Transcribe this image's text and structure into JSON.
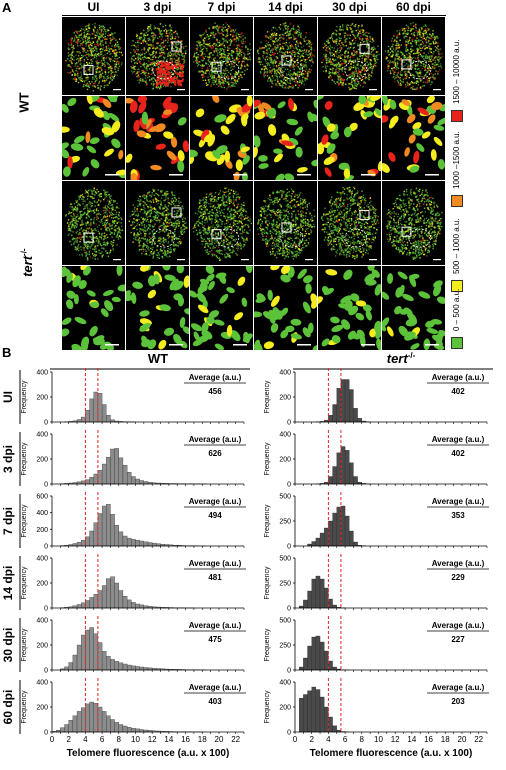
{
  "panel_a_letter": "A",
  "panel_b_letter": "B",
  "columns": [
    "UI",
    "3 dpi",
    "7 dpi",
    "14 dpi",
    "30 dpi",
    "60 dpi"
  ],
  "rows": [
    "WT",
    "tert"
  ],
  "row_b_superscript": "-/-",
  "legend": [
    {
      "label": "1500 – 10000 a.u.",
      "color": "#e8231c"
    },
    {
      "label": "1000 –1500 a.u.",
      "color": "#f08a21"
    },
    {
      "label": "500 – 1000 a.u.",
      "color": "#f4ec1e"
    },
    {
      "label": "0 – 500 a.u.",
      "color": "#5cc23a"
    }
  ],
  "chart_data": {
    "type": "bar",
    "groups": [
      {
        "name": "WT",
        "superscript": "",
        "bar_color": "#8c8c8c"
      },
      {
        "name": "tert",
        "superscript": "-/-",
        "bar_color": "#4a4a4a"
      }
    ],
    "xlabel": "Telomere fluorescence (a.u. x 100)",
    "ylabel": "Frequency",
    "x_ticks": [
      0,
      2,
      4,
      6,
      8,
      10,
      12,
      14,
      16,
      18,
      20,
      22
    ],
    "xlim": [
      0,
      23
    ],
    "reference_lines": [
      4,
      5.5
    ],
    "average_label": "Average (a.u.)",
    "panels": [
      {
        "row": "UI",
        "group": "WT",
        "average": "456",
        "ylim": [
          0,
          400
        ],
        "yticks": [
          0,
          200,
          400
        ],
        "values": [
          0,
          0,
          0,
          2,
          5,
          10,
          20,
          40,
          95,
          185,
          240,
          230,
          140,
          55,
          18,
          8,
          5,
          3,
          2,
          1,
          0,
          0,
          0,
          0,
          0,
          0,
          0,
          0,
          0,
          0,
          0,
          0,
          0,
          0,
          0,
          0,
          0,
          0,
          0,
          0,
          0,
          0,
          0,
          0,
          0,
          0
        ]
      },
      {
        "row": "UI",
        "group": "tert",
        "average": "402",
        "ylim": [
          0,
          400
        ],
        "yticks": [
          0,
          200,
          400
        ],
        "values": [
          0,
          0,
          0,
          0,
          0,
          2,
          5,
          15,
          55,
          140,
          270,
          340,
          340,
          260,
          110,
          30,
          8,
          2,
          0,
          0,
          0,
          0,
          0,
          0,
          0,
          0,
          0,
          0,
          0,
          0,
          0,
          0,
          0,
          0,
          0,
          0,
          0,
          0,
          0,
          0,
          0,
          0,
          0,
          0,
          0,
          0
        ]
      },
      {
        "row": "3 dpi",
        "group": "WT",
        "average": "626",
        "ylim": [
          0,
          400
        ],
        "yticks": [
          0,
          200,
          400
        ],
        "values": [
          0,
          0,
          3,
          5,
          8,
          12,
          18,
          25,
          35,
          55,
          80,
          110,
          160,
          215,
          280,
          285,
          210,
          150,
          95,
          60,
          40,
          28,
          20,
          14,
          10,
          8,
          6,
          5,
          4,
          4,
          3,
          3,
          2,
          2,
          1,
          1,
          1,
          0,
          0,
          0,
          0,
          0,
          0,
          0,
          0,
          0
        ]
      },
      {
        "row": "3 dpi",
        "group": "tert",
        "average": "402",
        "ylim": [
          0,
          400
        ],
        "yticks": [
          0,
          200,
          400
        ],
        "values": [
          0,
          0,
          0,
          0,
          0,
          2,
          5,
          15,
          60,
          140,
          250,
          300,
          270,
          170,
          60,
          15,
          5,
          1,
          0,
          0,
          0,
          0,
          0,
          0,
          0,
          0,
          0,
          0,
          0,
          0,
          0,
          0,
          0,
          0,
          0,
          0,
          0,
          0,
          0,
          0,
          0,
          0,
          0,
          0,
          0,
          0
        ]
      },
      {
        "row": "7 dpi",
        "group": "WT",
        "average": "494",
        "ylim": [
          0,
          600
        ],
        "yticks": [
          0,
          200,
          400,
          600
        ],
        "values": [
          0,
          0,
          5,
          10,
          18,
          30,
          45,
          70,
          110,
          180,
          280,
          390,
          480,
          500,
          380,
          250,
          170,
          120,
          95,
          80,
          70,
          60,
          50,
          42,
          35,
          28,
          22,
          18,
          14,
          10,
          8,
          6,
          4,
          3,
          2,
          1,
          1,
          0,
          0,
          0,
          0,
          0,
          0,
          0,
          0,
          0
        ]
      },
      {
        "row": "7 dpi",
        "group": "tert",
        "average": "353",
        "ylim": [
          0,
          500
        ],
        "yticks": [
          0,
          250,
          500
        ],
        "values": [
          0,
          0,
          0,
          20,
          45,
          80,
          130,
          180,
          250,
          330,
          390,
          400,
          300,
          150,
          40,
          8,
          2,
          0,
          0,
          0,
          0,
          0,
          0,
          0,
          0,
          0,
          0,
          0,
          0,
          0,
          0,
          0,
          0,
          0,
          0,
          0,
          0,
          0,
          0,
          0,
          0,
          0,
          0,
          0,
          0,
          0
        ]
      },
      {
        "row": "14 dpi",
        "group": "WT",
        "average": "481",
        "ylim": [
          0,
          400
        ],
        "yticks": [
          0,
          200,
          400
        ],
        "values": [
          0,
          0,
          3,
          6,
          10,
          18,
          28,
          42,
          60,
          85,
          110,
          140,
          180,
          235,
          250,
          200,
          140,
          95,
          65,
          45,
          32,
          25,
          18,
          14,
          10,
          8,
          6,
          5,
          4,
          3,
          2,
          2,
          1,
          1,
          0,
          0,
          0,
          0,
          0,
          0,
          0,
          0,
          0,
          0,
          0,
          0
        ]
      },
      {
        "row": "14 dpi",
        "group": "tert",
        "average": "229",
        "ylim": [
          0,
          500
        ],
        "yticks": [
          0,
          250,
          500
        ],
        "values": [
          0,
          20,
          80,
          170,
          290,
          320,
          290,
          200,
          90,
          30,
          8,
          2,
          0,
          0,
          0,
          0,
          0,
          0,
          0,
          0,
          0,
          0,
          0,
          0,
          0,
          0,
          0,
          0,
          0,
          0,
          0,
          0,
          0,
          0,
          0,
          0,
          0,
          0,
          0,
          0,
          0,
          0,
          0,
          0,
          0,
          0
        ]
      },
      {
        "row": "30 dpi",
        "group": "WT",
        "average": "475",
        "ylim": [
          0,
          400
        ],
        "yticks": [
          0,
          200,
          400
        ],
        "values": [
          0,
          0,
          10,
          25,
          60,
          120,
          200,
          280,
          320,
          340,
          290,
          220,
          150,
          110,
          85,
          70,
          58,
          48,
          40,
          34,
          28,
          24,
          20,
          17,
          14,
          12,
          10,
          8,
          7,
          6,
          5,
          4,
          3,
          2,
          2,
          1,
          1,
          0,
          0,
          0,
          0,
          0,
          0,
          0,
          0,
          0
        ]
      },
      {
        "row": "30 dpi",
        "group": "tert",
        "average": "227",
        "ylim": [
          0,
          500
        ],
        "yticks": [
          0,
          250,
          500
        ],
        "values": [
          0,
          30,
          120,
          240,
          330,
          340,
          280,
          190,
          90,
          30,
          10,
          3,
          1,
          0,
          0,
          0,
          0,
          0,
          0,
          0,
          0,
          0,
          0,
          0,
          0,
          0,
          0,
          0,
          0,
          0,
          0,
          0,
          0,
          0,
          0,
          0,
          0,
          0,
          0,
          0,
          0,
          0,
          0,
          0,
          0,
          0
        ]
      },
      {
        "row": "60 dpi",
        "group": "WT",
        "average": "403",
        "ylim": [
          0,
          400
        ],
        "yticks": [
          0,
          200,
          400
        ],
        "values": [
          5,
          15,
          35,
          60,
          95,
          130,
          165,
          195,
          225,
          240,
          230,
          200,
          165,
          130,
          100,
          78,
          60,
          48,
          38,
          30,
          25,
          20,
          16,
          13,
          10,
          8,
          6,
          5,
          4,
          3,
          3,
          2,
          2,
          1,
          1,
          1,
          0,
          0,
          0,
          0,
          0,
          0,
          0,
          0,
          0,
          0
        ]
      },
      {
        "row": "60 dpi",
        "group": "tert",
        "average": "203",
        "ylim": [
          0,
          400
        ],
        "yticks": [
          0,
          200,
          400
        ],
        "values": [
          0,
          270,
          300,
          330,
          360,
          340,
          280,
          200,
          120,
          50,
          15,
          4,
          1,
          0,
          0,
          0,
          0,
          0,
          0,
          0,
          0,
          0,
          0,
          0,
          0,
          0,
          0,
          0,
          0,
          0,
          0,
          0,
          0,
          0,
          0,
          0,
          0,
          0,
          0,
          0,
          0,
          0,
          0,
          0,
          0,
          0
        ]
      }
    ]
  }
}
